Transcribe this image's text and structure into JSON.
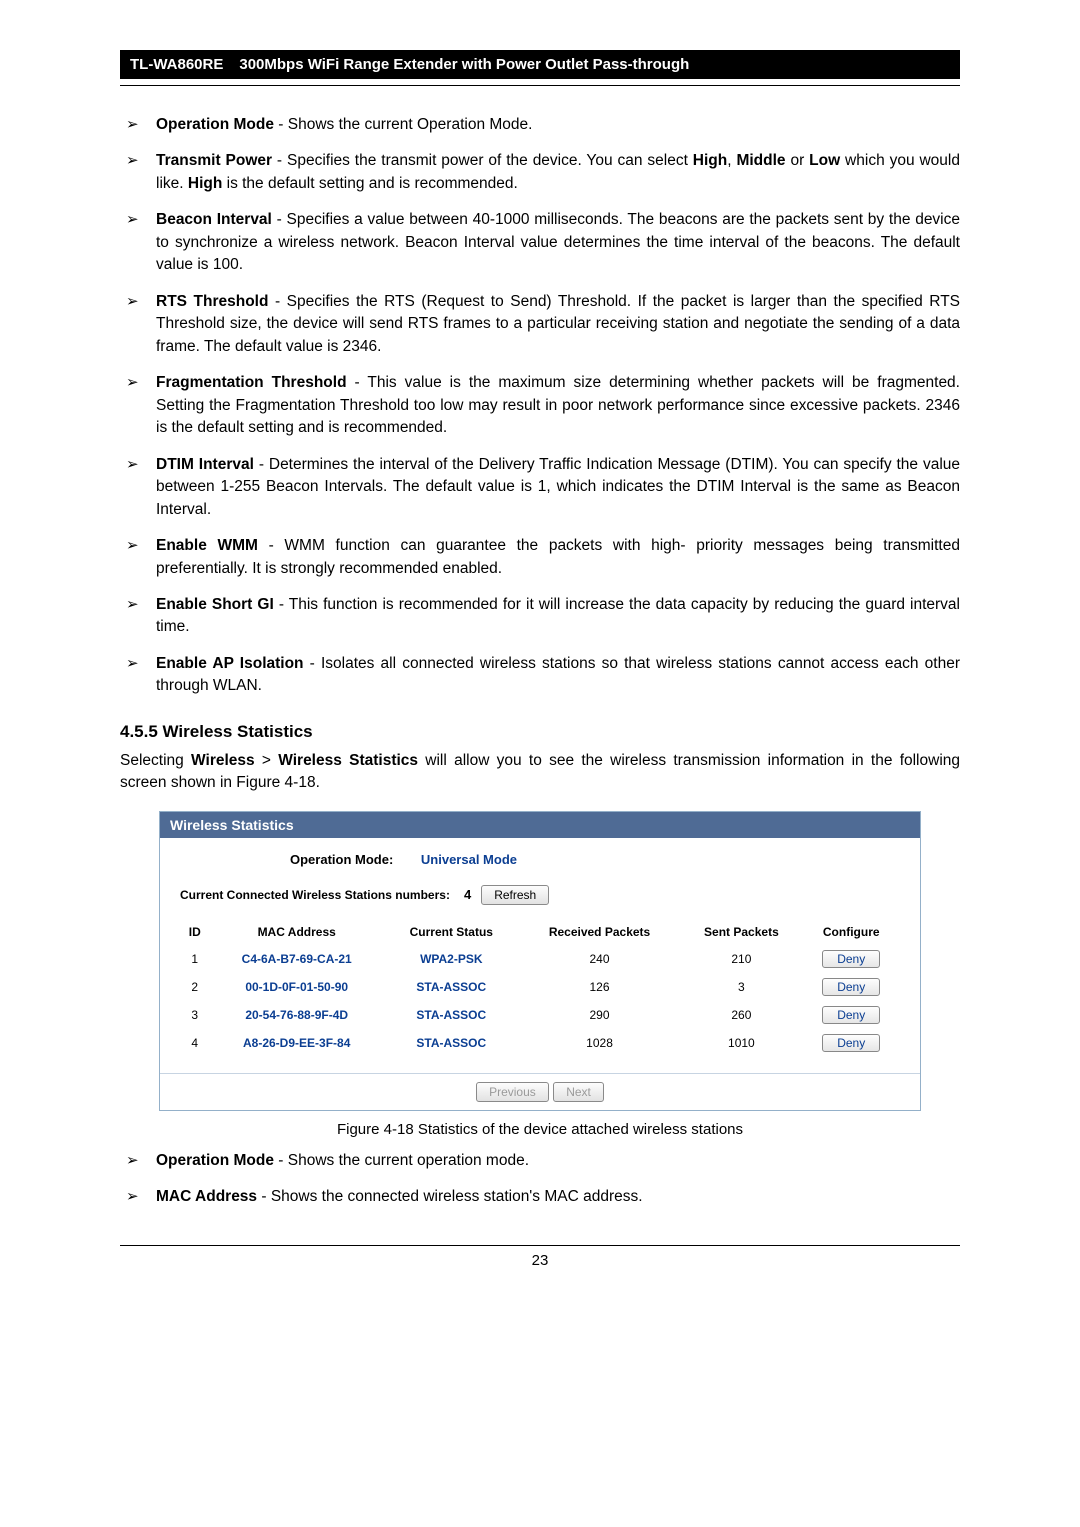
{
  "header": {
    "model": "TL-WA860RE",
    "desc": "300Mbps WiFi Range Extender with Power Outlet Pass-through"
  },
  "bullets1": [
    {
      "term": "Operation Mode",
      "text": " - Shows the current Operation Mode."
    },
    {
      "term": "Transmit Power",
      "text": " - Specifies the transmit power of the device. You can select ",
      "b1": "High",
      "mid1": ", ",
      "b2": "Middle",
      "mid2": " or ",
      "b3": "Low",
      "mid3": " which you would like. ",
      "b4": "High",
      "tail": " is the default setting and is recommended."
    },
    {
      "term": "Beacon Interval",
      "text": " - Specifies a value between 40-1000 milliseconds. The beacons are the packets sent by the device to synchronize a wireless network. Beacon Interval value determines the time interval of the beacons. The default value is 100."
    },
    {
      "term": "RTS Threshold",
      "text": " - Specifies the RTS (Request to Send) Threshold. If the packet is larger than the specified RTS Threshold size, the device will send RTS frames to a particular receiving station and negotiate the sending of a data frame. The default value is 2346."
    },
    {
      "term": "Fragmentation Threshold",
      "text": " - This value is the maximum size determining whether packets will be fragmented. Setting the Fragmentation Threshold too low may result in poor network performance since excessive packets. 2346 is the default setting and is recommended."
    },
    {
      "term": "DTIM Interval",
      "text": " - Determines the interval of the Delivery Traffic Indication Message (DTIM). You can specify the value between 1-255 Beacon Intervals. The default value is 1, which indicates the DTIM Interval is the same as Beacon Interval."
    },
    {
      "term": "Enable WMM",
      "text": " - WMM function can guarantee the packets with high- priority messages being transmitted preferentially. It is strongly recommended enabled."
    },
    {
      "term": "Enable Short GI",
      "text": " - This function is recommended for it will increase the data capacity by reducing the guard interval time."
    },
    {
      "term": "Enable AP Isolation",
      "text": " - Isolates all connected wireless stations so that wireless stations cannot access each other through WLAN."
    }
  ],
  "section": {
    "heading": "4.5.5  Wireless Statistics",
    "intro_pre": "Selecting ",
    "intro_b1": "Wireless",
    "intro_mid": " > ",
    "intro_b2": "Wireless Statistics",
    "intro_post": " will allow you to see the wireless transmission information in the following screen shown in Figure 4-18."
  },
  "panel": {
    "title": "Wireless Statistics",
    "op_mode_label": "Operation Mode:",
    "op_mode_value": "Universal Mode",
    "conn_label": "Current Connected Wireless Stations numbers:",
    "conn_count": "4",
    "refresh_label": "Refresh",
    "columns": [
      "ID",
      "MAC Address",
      "Current Status",
      "Received Packets",
      "Sent Packets",
      "Configure"
    ],
    "rows": [
      {
        "id": "1",
        "mac": "C4-6A-B7-69-CA-21",
        "status": "WPA2-PSK",
        "rx": "240",
        "tx": "210",
        "action": "Deny"
      },
      {
        "id": "2",
        "mac": "00-1D-0F-01-50-90",
        "status": "STA-ASSOC",
        "rx": "126",
        "tx": "3",
        "action": "Deny"
      },
      {
        "id": "3",
        "mac": "20-54-76-88-9F-4D",
        "status": "STA-ASSOC",
        "rx": "290",
        "tx": "260",
        "action": "Deny"
      },
      {
        "id": "4",
        "mac": "A8-26-D9-EE-3F-84",
        "status": "STA-ASSOC",
        "rx": "1028",
        "tx": "1010",
        "action": "Deny"
      }
    ],
    "prev_label": "Previous",
    "next_label": "Next"
  },
  "figure_caption": "Figure 4-18 Statistics of the device attached wireless stations",
  "bullets2": [
    {
      "term": "Operation Mode",
      "text": " - Shows the current operation mode."
    },
    {
      "term": "MAC Address",
      "text": " - Shows the connected wireless station's MAC address."
    }
  ],
  "page_number": "23"
}
